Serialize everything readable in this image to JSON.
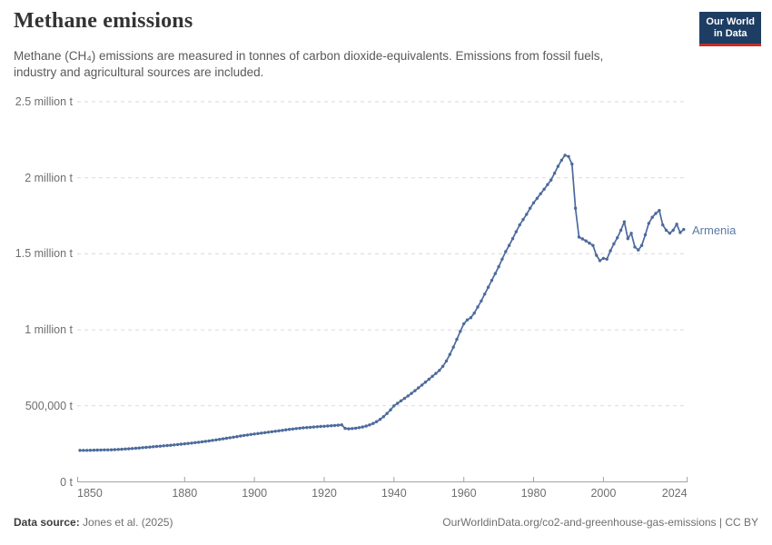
{
  "header": {
    "title": "Methane emissions",
    "subtitle_line1": "Methane (CH₄) emissions are measured in tonnes of carbon dioxide-equivalents. Emissions from fossil fuels,",
    "subtitle_line2": "industry and agricultural sources are included.",
    "logo_line1": "Our World",
    "logo_line2": "in Data"
  },
  "colors": {
    "line": "#4c6a9c",
    "series_label": "#5b7aa6",
    "logo_bg": "#1d3d63",
    "logo_red": "#c32e26",
    "grid": "#dadada",
    "axis": "#a3a3a3"
  },
  "footer": {
    "source_label": "Data source:",
    "source_value": "Jones et al. (2025)",
    "note": "OurWorldinData.org/co2-and-greenhouse-gas-emissions | CC BY"
  },
  "chart_data": {
    "type": "line",
    "title": "Methane emissions",
    "xlabel": "",
    "ylabel": "",
    "unit": "tonnes of carbon dioxide-equivalents",
    "grid": true,
    "legend_position": "end-of-line",
    "xlim": [
      1850,
      2024
    ],
    "ylim": [
      0,
      2500000
    ],
    "y_ticks": [
      {
        "label": "0 t",
        "value": 0
      },
      {
        "label": "500,000 t",
        "value": 500000
      },
      {
        "label": "1 million t",
        "value": 1000000
      },
      {
        "label": "1.5 million t",
        "value": 1500000
      },
      {
        "label": "2 million t",
        "value": 2000000
      },
      {
        "label": "2.5 million t",
        "value": 2500000
      }
    ],
    "x_ticks": [
      {
        "label": "1850",
        "year": 1850
      },
      {
        "label": "1880",
        "year": 1880
      },
      {
        "label": "1900",
        "year": 1900
      },
      {
        "label": "1920",
        "year": 1920
      },
      {
        "label": "1940",
        "year": 1940
      },
      {
        "label": "1960",
        "year": 1960
      },
      {
        "label": "1980",
        "year": 1980
      },
      {
        "label": "2000",
        "year": 2000
      },
      {
        "label": "2024",
        "year": 2024
      }
    ],
    "series": [
      {
        "name": "Armenia",
        "color": "#4c6a9c",
        "label_color": "#5b7aa6",
        "points": [
          [
            1850,
            207000
          ],
          [
            1851,
            207000
          ],
          [
            1852,
            207500
          ],
          [
            1853,
            208000
          ],
          [
            1854,
            208500
          ],
          [
            1855,
            209000
          ],
          [
            1856,
            209500
          ],
          [
            1857,
            210000
          ],
          [
            1858,
            210500
          ],
          [
            1859,
            211000
          ],
          [
            1860,
            212000
          ],
          [
            1861,
            213000
          ],
          [
            1862,
            214500
          ],
          [
            1863,
            216000
          ],
          [
            1864,
            217500
          ],
          [
            1865,
            219000
          ],
          [
            1866,
            221000
          ],
          [
            1867,
            223000
          ],
          [
            1868,
            225000
          ],
          [
            1869,
            227000
          ],
          [
            1870,
            229000
          ],
          [
            1871,
            231000
          ],
          [
            1872,
            233000
          ],
          [
            1873,
            235000
          ],
          [
            1874,
            237000
          ],
          [
            1875,
            239000
          ],
          [
            1876,
            241000
          ],
          [
            1877,
            243200
          ],
          [
            1878,
            245400
          ],
          [
            1879,
            247700
          ],
          [
            1880,
            250000
          ],
          [
            1881,
            252500
          ],
          [
            1882,
            255000
          ],
          [
            1883,
            257800
          ],
          [
            1884,
            260600
          ],
          [
            1885,
            263500
          ],
          [
            1886,
            266500
          ],
          [
            1887,
            269600
          ],
          [
            1888,
            272800
          ],
          [
            1889,
            276100
          ],
          [
            1890,
            279500
          ],
          [
            1891,
            283000
          ],
          [
            1892,
            286600
          ],
          [
            1893,
            290300
          ],
          [
            1894,
            294000
          ],
          [
            1895,
            297700
          ],
          [
            1896,
            301400
          ],
          [
            1897,
            305000
          ],
          [
            1898,
            308500
          ],
          [
            1899,
            311800
          ],
          [
            1900,
            315000
          ],
          [
            1901,
            318000
          ],
          [
            1902,
            321000
          ],
          [
            1903,
            324000
          ],
          [
            1904,
            327000
          ],
          [
            1905,
            330000
          ],
          [
            1906,
            333000
          ],
          [
            1907,
            336000
          ],
          [
            1908,
            339000
          ],
          [
            1909,
            342000
          ],
          [
            1910,
            345000
          ],
          [
            1911,
            347800
          ],
          [
            1912,
            350500
          ],
          [
            1913,
            353000
          ],
          [
            1914,
            355300
          ],
          [
            1915,
            357400
          ],
          [
            1916,
            359300
          ],
          [
            1917,
            361000
          ],
          [
            1918,
            362600
          ],
          [
            1919,
            364200
          ],
          [
            1920,
            365800
          ],
          [
            1921,
            367400
          ],
          [
            1922,
            369000
          ],
          [
            1923,
            370800
          ],
          [
            1924,
            372800
          ],
          [
            1925,
            375000
          ],
          [
            1926,
            352000
          ],
          [
            1927,
            349000
          ],
          [
            1928,
            350500
          ],
          [
            1929,
            353000
          ],
          [
            1930,
            356500
          ],
          [
            1931,
            361000
          ],
          [
            1932,
            367000
          ],
          [
            1933,
            374500
          ],
          [
            1934,
            384000
          ],
          [
            1935,
            396000
          ],
          [
            1936,
            411000
          ],
          [
            1937,
            429000
          ],
          [
            1938,
            450000
          ],
          [
            1939,
            474000
          ],
          [
            1940,
            500000
          ],
          [
            1941,
            517000
          ],
          [
            1942,
            533000
          ],
          [
            1943,
            549000
          ],
          [
            1944,
            565000
          ],
          [
            1945,
            582000
          ],
          [
            1946,
            600000
          ],
          [
            1947,
            618000
          ],
          [
            1948,
            637000
          ],
          [
            1949,
            656000
          ],
          [
            1950,
            675000
          ],
          [
            1951,
            694000
          ],
          [
            1952,
            713000
          ],
          [
            1953,
            733000
          ],
          [
            1954,
            760000
          ],
          [
            1955,
            795000
          ],
          [
            1956,
            838000
          ],
          [
            1957,
            886000
          ],
          [
            1958,
            937000
          ],
          [
            1959,
            990000
          ],
          [
            1960,
            1040000
          ],
          [
            1961,
            1065000
          ],
          [
            1962,
            1080000
          ],
          [
            1963,
            1110000
          ],
          [
            1964,
            1150000
          ],
          [
            1965,
            1190000
          ],
          [
            1966,
            1235000
          ],
          [
            1967,
            1280000
          ],
          [
            1968,
            1325000
          ],
          [
            1969,
            1370000
          ],
          [
            1970,
            1415000
          ],
          [
            1971,
            1465000
          ],
          [
            1972,
            1515000
          ],
          [
            1973,
            1555000
          ],
          [
            1974,
            1600000
          ],
          [
            1975,
            1645000
          ],
          [
            1976,
            1690000
          ],
          [
            1977,
            1725000
          ],
          [
            1978,
            1760000
          ],
          [
            1979,
            1800000
          ],
          [
            1980,
            1835000
          ],
          [
            1981,
            1865000
          ],
          [
            1982,
            1895000
          ],
          [
            1983,
            1925000
          ],
          [
            1984,
            1955000
          ],
          [
            1985,
            1985000
          ],
          [
            1986,
            2030000
          ],
          [
            1987,
            2075000
          ],
          [
            1988,
            2115000
          ],
          [
            1989,
            2148000
          ],
          [
            1990,
            2140000
          ],
          [
            1991,
            2090000
          ],
          [
            1992,
            1800000
          ],
          [
            1993,
            1610000
          ],
          [
            1994,
            1598000
          ],
          [
            1995,
            1585000
          ],
          [
            1996,
            1570000
          ],
          [
            1997,
            1555000
          ],
          [
            1998,
            1490000
          ],
          [
            1999,
            1455000
          ],
          [
            2000,
            1470000
          ],
          [
            2001,
            1465000
          ],
          [
            2002,
            1520000
          ],
          [
            2003,
            1565000
          ],
          [
            2004,
            1605000
          ],
          [
            2005,
            1655000
          ],
          [
            2006,
            1710000
          ],
          [
            2007,
            1600000
          ],
          [
            2008,
            1635000
          ],
          [
            2009,
            1545000
          ],
          [
            2010,
            1525000
          ],
          [
            2011,
            1555000
          ],
          [
            2012,
            1625000
          ],
          [
            2013,
            1700000
          ],
          [
            2014,
            1740000
          ],
          [
            2015,
            1765000
          ],
          [
            2016,
            1785000
          ],
          [
            2017,
            1690000
          ],
          [
            2018,
            1655000
          ],
          [
            2019,
            1635000
          ],
          [
            2020,
            1655000
          ],
          [
            2021,
            1695000
          ],
          [
            2022,
            1640000
          ],
          [
            2023,
            1660000
          ]
        ]
      }
    ]
  }
}
